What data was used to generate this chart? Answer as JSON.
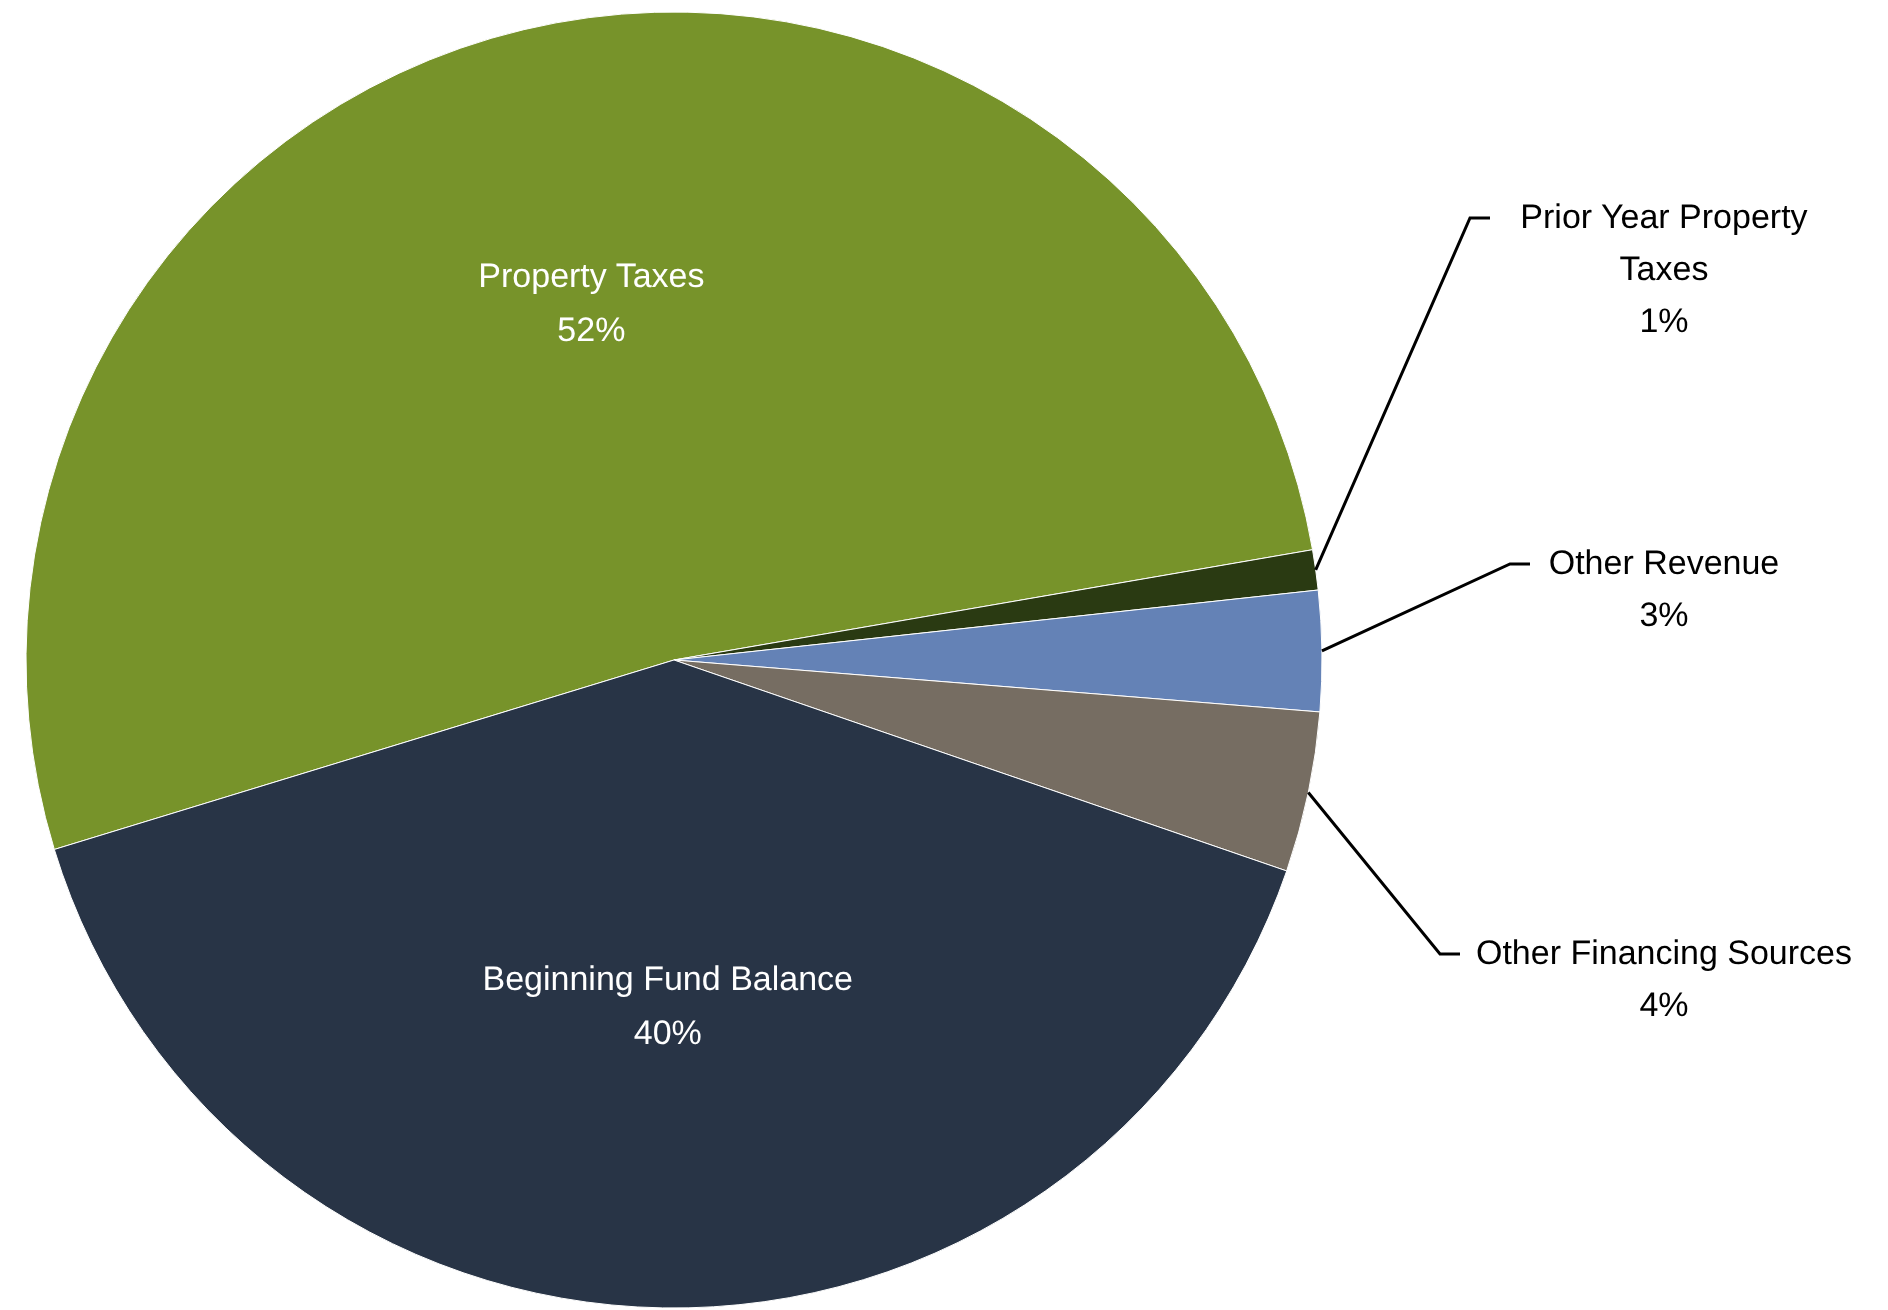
{
  "chart_data": {
    "type": "pie",
    "categories": [
      "Property Taxes",
      "Prior Year Property Taxes",
      "Other Revenue",
      "Other Financing Sources",
      "Beginning Fund Balance"
    ],
    "values": [
      52,
      1,
      3,
      4,
      40
    ],
    "value_labels": [
      "52%",
      "1%",
      "3%",
      "4%",
      "40%"
    ],
    "colors": [
      "#77932a",
      "#2a3a12",
      "#6482b6",
      "#766d62",
      "#283446"
    ]
  }
}
